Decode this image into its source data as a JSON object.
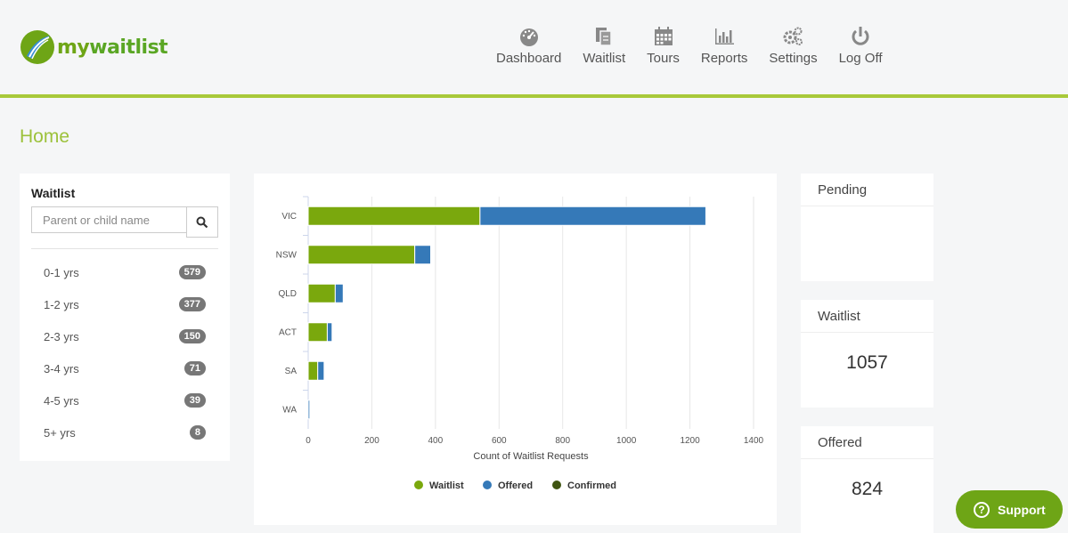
{
  "brand": {
    "name_prefix": "my",
    "name_suffix": "waitlist"
  },
  "nav": {
    "items": [
      {
        "label": "Dashboard",
        "icon": "dashboard-gauge-icon"
      },
      {
        "label": "Waitlist",
        "icon": "documents-icon"
      },
      {
        "label": "Tours",
        "icon": "calendar-icon"
      },
      {
        "label": "Reports",
        "icon": "bar-chart-icon"
      },
      {
        "label": "Settings",
        "icon": "gears-icon"
      },
      {
        "label": "Log Off",
        "icon": "power-icon"
      }
    ]
  },
  "page": {
    "title": "Home"
  },
  "waitlist_panel": {
    "title": "Waitlist",
    "search_placeholder": "Parent or child name",
    "search_icon": "search-icon",
    "ages": [
      {
        "label": "0-1 yrs",
        "count": "579"
      },
      {
        "label": "1-2 yrs",
        "count": "377"
      },
      {
        "label": "2-3 yrs",
        "count": "150"
      },
      {
        "label": "3-4 yrs",
        "count": "71"
      },
      {
        "label": "4-5 yrs",
        "count": "39"
      },
      {
        "label": "5+ yrs",
        "count": "8"
      }
    ]
  },
  "stats": {
    "pending": {
      "title": "Pending",
      "value": ""
    },
    "waitlist": {
      "title": "Waitlist",
      "value": "1057"
    },
    "offered": {
      "title": "Offered",
      "value": "824"
    }
  },
  "support": {
    "label": "Support",
    "icon": "question-circle-icon"
  },
  "colors": {
    "waitlist": "#7aa80d",
    "offered": "#3579b8",
    "confirmed": "#3f5411",
    "accent": "#a8c93a"
  },
  "chart_data": {
    "type": "bar",
    "orientation": "horizontal",
    "stacked": true,
    "categories": [
      "VIC",
      "NSW",
      "QLD",
      "ACT",
      "SA",
      "WA"
    ],
    "series": [
      {
        "name": "Waitlist",
        "values": [
          540,
          335,
          85,
          60,
          30,
          0
        ]
      },
      {
        "name": "Offered",
        "values": [
          710,
          50,
          25,
          15,
          20,
          5
        ]
      },
      {
        "name": "Confirmed",
        "values": [
          0,
          0,
          0,
          0,
          0,
          0
        ]
      }
    ],
    "xlabel": "Count of Waitlist Requests",
    "ylabel": "",
    "xlim": [
      0,
      1400
    ],
    "xticks": [
      0,
      200,
      400,
      600,
      800,
      1000,
      1200,
      1400
    ],
    "grid": true,
    "legend": "bottom"
  }
}
